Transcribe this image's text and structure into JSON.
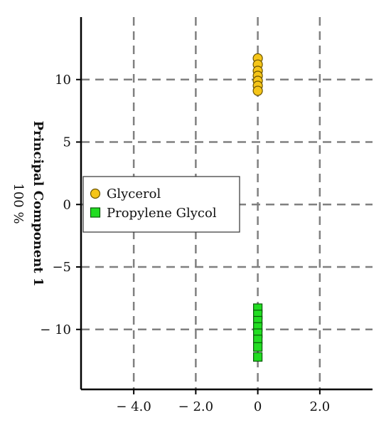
{
  "chart_data": {
    "type": "scatter",
    "title": "",
    "xlabel": "",
    "ylabel": "Principal Component 1",
    "ylabel_sub": "100 %",
    "xlim": [
      -5.7,
      3.7
    ],
    "ylim": [
      -14.8,
      15.0
    ],
    "grid": true,
    "legend_position": "left-middle",
    "x_ticks": [
      {
        "value": -4.0,
        "label": "− 4.0"
      },
      {
        "value": -2.0,
        "label": "− 2.0"
      },
      {
        "value": 0,
        "label": "0"
      },
      {
        "value": 2.0,
        "label": "2.0"
      }
    ],
    "y_ticks": [
      {
        "value": 10,
        "label": "10"
      },
      {
        "value": 5,
        "label": "5"
      },
      {
        "value": 0,
        "label": "0"
      },
      {
        "value": -5,
        "label": "−5"
      },
      {
        "value": -10,
        "label": "− 10"
      }
    ],
    "series": [
      {
        "name": "Glycerol",
        "marker": "circle",
        "color": "#F5C518",
        "edge": "#6b5300",
        "points": [
          {
            "x": 0,
            "y": 11.7
          },
          {
            "x": 0,
            "y": 11.2
          },
          {
            "x": 0,
            "y": 10.7
          },
          {
            "x": 0,
            "y": 10.3
          },
          {
            "x": 0,
            "y": 9.9
          },
          {
            "x": 0,
            "y": 9.5
          },
          {
            "x": 0,
            "y": 9.1
          }
        ]
      },
      {
        "name": "Propylene Glycol",
        "marker": "square",
        "color": "#22DD22",
        "edge": "#0a5a0a",
        "points": [
          {
            "x": 0,
            "y": -8.3
          },
          {
            "x": 0,
            "y": -8.8
          },
          {
            "x": 0,
            "y": -9.3
          },
          {
            "x": 0,
            "y": -9.8
          },
          {
            "x": 0,
            "y": -10.3
          },
          {
            "x": 0,
            "y": -10.8
          },
          {
            "x": 0,
            "y": -11.4
          },
          {
            "x": 0,
            "y": -12.2
          }
        ]
      }
    ]
  }
}
